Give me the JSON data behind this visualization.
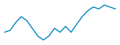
{
  "x": [
    0,
    1,
    2,
    3,
    4,
    5,
    6,
    7,
    8,
    9,
    10,
    11,
    12,
    13,
    14,
    15,
    16,
    17,
    18,
    19,
    20
  ],
  "y": [
    7,
    8,
    12,
    15,
    13,
    9,
    5,
    3,
    5,
    9,
    7,
    10,
    7,
    11,
    15,
    18,
    20,
    19,
    21,
    20,
    19
  ],
  "line_color": "#2196c8",
  "line_width": 0.9,
  "background_color": "#ffffff"
}
